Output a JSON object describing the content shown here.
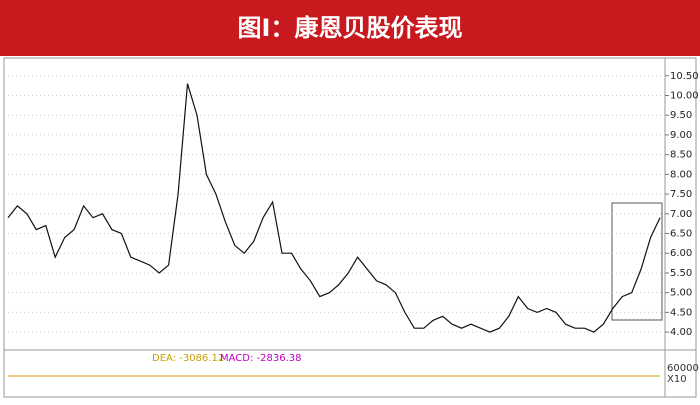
{
  "chart_data": {
    "type": "line",
    "title": "图I：康恩贝股价表现",
    "values": [
      6.9,
      7.2,
      7.0,
      6.6,
      6.7,
      5.9,
      6.4,
      6.6,
      7.2,
      6.9,
      7.0,
      6.6,
      6.5,
      5.9,
      5.8,
      5.7,
      5.5,
      5.7,
      7.5,
      10.3,
      9.5,
      8.0,
      7.5,
      6.8,
      6.2,
      6.0,
      6.3,
      6.9,
      7.3,
      6.0,
      6.0,
      5.6,
      5.3,
      4.9,
      5.0,
      5.2,
      5.5,
      5.9,
      5.6,
      5.3,
      5.2,
      5.0,
      4.5,
      4.1,
      4.1,
      4.3,
      4.4,
      4.2,
      4.1,
      4.2,
      4.1,
      4.0,
      4.1,
      4.4,
      4.9,
      4.6,
      4.5,
      4.6,
      4.5,
      4.2,
      4.1,
      4.1,
      4.0,
      4.2,
      4.6,
      4.9,
      5.0,
      5.6,
      6.4,
      6.9
    ],
    "color": "#111111",
    "ylim": [
      3.8,
      10.9
    ],
    "yticks": [
      {
        "value": 4.0,
        "label": "4.00"
      },
      {
        "value": 4.5,
        "label": "4.50"
      },
      {
        "value": 5.0,
        "label": "5.00"
      },
      {
        "value": 5.5,
        "label": "5.50"
      },
      {
        "value": 6.0,
        "label": "6.00"
      },
      {
        "value": 6.5,
        "label": "6.50"
      },
      {
        "value": 7.0,
        "label": "7.00"
      },
      {
        "value": 7.5,
        "label": "7.50"
      },
      {
        "value": 8.0,
        "label": "8.00"
      },
      {
        "value": 8.5,
        "label": "8.50"
      },
      {
        "value": 9.0,
        "label": "9.00"
      },
      {
        "value": 9.5,
        "label": "9.50"
      },
      {
        "value": 10.0,
        "label": "10.00"
      },
      {
        "value": 10.5,
        "label": "10.50"
      }
    ],
    "grid": true,
    "indicator": {
      "dea": "DEA: -3086.12",
      "macd": "MACD: -2836.38",
      "scale": "60000",
      "multiplier": "X10"
    }
  }
}
